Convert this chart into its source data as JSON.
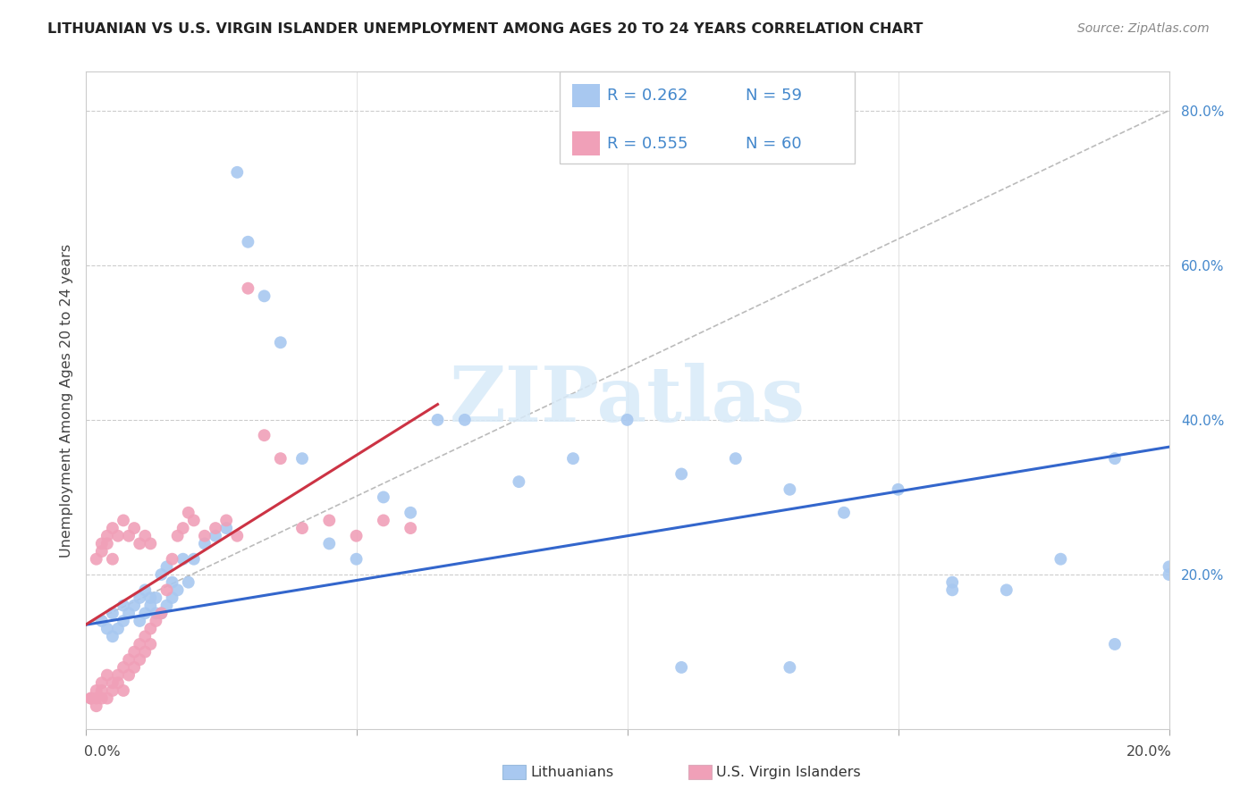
{
  "title": "LITHUANIAN VS U.S. VIRGIN ISLANDER UNEMPLOYMENT AMONG AGES 20 TO 24 YEARS CORRELATION CHART",
  "source": "Source: ZipAtlas.com",
  "ylabel": "Unemployment Among Ages 20 to 24 years",
  "xlim": [
    0.0,
    0.2
  ],
  "ylim": [
    0.0,
    0.85
  ],
  "blue_color": "#a8c8f0",
  "pink_color": "#f0a0b8",
  "blue_line_color": "#3366cc",
  "pink_line_color": "#cc3344",
  "watermark_text": "ZIPatlas",
  "watermark_color": "#d8eaf8",
  "legend_R1": "R = 0.262",
  "legend_N1": "N = 59",
  "legend_R2": "R = 0.555",
  "legend_N2": "N = 60",
  "blue_line_x": [
    0.0,
    0.2
  ],
  "blue_line_y": [
    0.135,
    0.365
  ],
  "pink_line_x": [
    0.0,
    0.065
  ],
  "pink_line_y": [
    0.135,
    0.42
  ],
  "blue_x": [
    0.003,
    0.004,
    0.005,
    0.005,
    0.006,
    0.007,
    0.007,
    0.008,
    0.009,
    0.01,
    0.01,
    0.011,
    0.011,
    0.012,
    0.012,
    0.013,
    0.013,
    0.014,
    0.014,
    0.015,
    0.015,
    0.016,
    0.016,
    0.017,
    0.018,
    0.019,
    0.02,
    0.022,
    0.024,
    0.026,
    0.028,
    0.03,
    0.033,
    0.036,
    0.04,
    0.045,
    0.05,
    0.055,
    0.06,
    0.065,
    0.07,
    0.08,
    0.09,
    0.1,
    0.11,
    0.12,
    0.13,
    0.14,
    0.15,
    0.16,
    0.17,
    0.18,
    0.19,
    0.2,
    0.2,
    0.19,
    0.16,
    0.13,
    0.11
  ],
  "blue_y": [
    0.14,
    0.13,
    0.15,
    0.12,
    0.13,
    0.14,
    0.16,
    0.15,
    0.16,
    0.17,
    0.14,
    0.15,
    0.18,
    0.16,
    0.17,
    0.15,
    0.17,
    0.15,
    0.2,
    0.21,
    0.16,
    0.17,
    0.19,
    0.18,
    0.22,
    0.19,
    0.22,
    0.24,
    0.25,
    0.26,
    0.72,
    0.63,
    0.56,
    0.5,
    0.35,
    0.24,
    0.22,
    0.3,
    0.28,
    0.4,
    0.4,
    0.32,
    0.35,
    0.4,
    0.33,
    0.35,
    0.31,
    0.28,
    0.31,
    0.19,
    0.18,
    0.22,
    0.35,
    0.21,
    0.2,
    0.11,
    0.18,
    0.08,
    0.08
  ],
  "pink_x": [
    0.001,
    0.002,
    0.002,
    0.003,
    0.003,
    0.004,
    0.004,
    0.005,
    0.005,
    0.006,
    0.006,
    0.007,
    0.007,
    0.008,
    0.008,
    0.009,
    0.009,
    0.01,
    0.01,
    0.011,
    0.011,
    0.012,
    0.012,
    0.013,
    0.014,
    0.015,
    0.016,
    0.017,
    0.018,
    0.019,
    0.02,
    0.022,
    0.024,
    0.026,
    0.028,
    0.03,
    0.033,
    0.036,
    0.04,
    0.045,
    0.05,
    0.055,
    0.06,
    0.003,
    0.004,
    0.005,
    0.006,
    0.007,
    0.008,
    0.009,
    0.01,
    0.011,
    0.012,
    0.002,
    0.003,
    0.004,
    0.005,
    0.001,
    0.002,
    0.003
  ],
  "pink_y": [
    0.04,
    0.05,
    0.04,
    0.06,
    0.05,
    0.07,
    0.04,
    0.06,
    0.05,
    0.07,
    0.06,
    0.08,
    0.05,
    0.09,
    0.07,
    0.1,
    0.08,
    0.11,
    0.09,
    0.12,
    0.1,
    0.13,
    0.11,
    0.14,
    0.15,
    0.18,
    0.22,
    0.25,
    0.26,
    0.28,
    0.27,
    0.25,
    0.26,
    0.27,
    0.25,
    0.57,
    0.38,
    0.35,
    0.26,
    0.27,
    0.25,
    0.27,
    0.26,
    0.24,
    0.25,
    0.26,
    0.25,
    0.27,
    0.25,
    0.26,
    0.24,
    0.25,
    0.24,
    0.22,
    0.23,
    0.24,
    0.22,
    0.04,
    0.03,
    0.04
  ]
}
